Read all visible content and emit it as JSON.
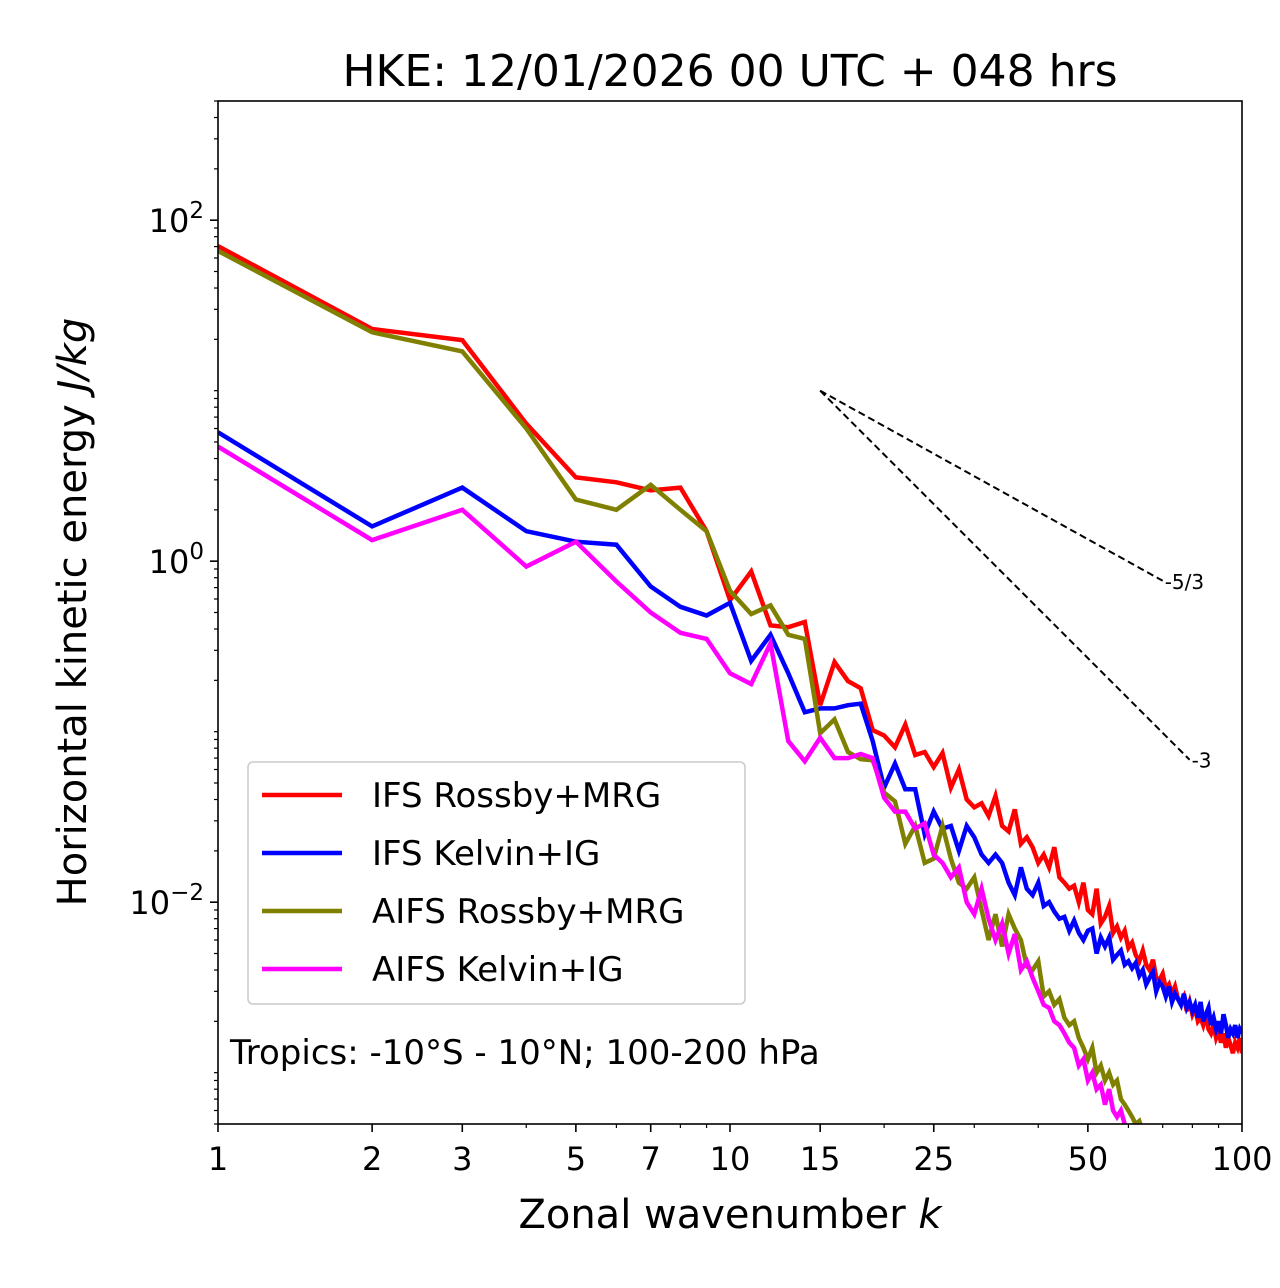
{
  "chart_data": {
    "type": "line",
    "title": "HKE: 12/01/2026 00 UTC + 048 hrs",
    "xlabel": "Zonal wavenumber",
    "xlabel_var": "k",
    "ylabel": "Horizontal kinetic energy",
    "ylabel_units": "J/kg",
    "xscale": "log",
    "yscale": "log",
    "xlim": [
      1,
      100
    ],
    "ylim": [
      0.0005,
      500
    ],
    "x_ticks": [
      1,
      2,
      3,
      5,
      7,
      10,
      15,
      25,
      50,
      100
    ],
    "x_tick_labels": [
      "1",
      "2",
      "3",
      "5",
      "7",
      "10",
      "15",
      "25",
      "50",
      "100"
    ],
    "y_ticks": [
      100,
      1,
      0.01
    ],
    "y_tick_labels": [
      {
        "base": "10",
        "exp": "2"
      },
      {
        "base": "10",
        "exp": "0"
      },
      {
        "base": "10",
        "exp": "−2"
      }
    ],
    "legend_position": "lower-left",
    "annotation": "Tropics: -10°S - 10°N; 100-200 hPa",
    "reference_lines": [
      {
        "label": "-5/3",
        "slope": -1.6667,
        "k_start": 15,
        "k_end": 70,
        "value_start": 10
      },
      {
        "label": "-3",
        "slope": -3,
        "k_start": 15,
        "k_end": 79,
        "value_start": 10
      }
    ],
    "series": [
      {
        "name": "IFS Rossby+MRG",
        "color": "#ff0000",
        "k_start": 1,
        "values": [
          70.5,
          23,
          19.8,
          6.4,
          3.1,
          2.9,
          2.6,
          2.7,
          1.5,
          0.59,
          0.87,
          0.42,
          0.41,
          0.44,
          0.143,
          0.256,
          0.198,
          0.18,
          0.102,
          0.095,
          0.081,
          0.11,
          0.073,
          0.076,
          0.062,
          0.075,
          0.047,
          0.06,
          0.04,
          0.036,
          0.038,
          0.032,
          0.042,
          0.028,
          0.026,
          0.035,
          0.022,
          0.024,
          0.021,
          0.017,
          0.019,
          0.016,
          0.021,
          0.014,
          0.013,
          0.012,
          0.0125,
          0.01,
          0.013,
          0.009,
          0.0085,
          0.012,
          0.0075,
          0.0082,
          0.0095,
          0.0066,
          0.0072,
          0.0062,
          0.0068,
          0.0054,
          0.0058,
          0.0049,
          0.0045,
          0.0052,
          0.0043,
          0.004,
          0.0046,
          0.0036,
          0.0035,
          0.0038,
          0.0031,
          0.0033,
          0.0029,
          0.0032,
          0.0027,
          0.0026,
          0.0028,
          0.0023,
          0.0026,
          0.0022,
          0.0024,
          0.002,
          0.0021,
          0.0019,
          0.0022,
          0.0018,
          0.0017,
          0.0019,
          0.0016,
          0.00175,
          0.0015,
          0.0017,
          0.0014,
          0.0016,
          0.00145,
          0.0013,
          0.0015,
          0.0014,
          0.0016,
          0.0013
        ]
      },
      {
        "name": "IFS Kelvin+IG",
        "color": "#0000ff",
        "k_start": 1,
        "values": [
          5.7,
          1.6,
          2.7,
          1.5,
          1.3,
          1.25,
          0.71,
          0.54,
          0.48,
          0.57,
          0.26,
          0.37,
          0.22,
          0.13,
          0.137,
          0.137,
          0.143,
          0.146,
          0.088,
          0.047,
          0.065,
          0.046,
          0.046,
          0.025,
          0.034,
          0.027,
          0.028,
          0.02,
          0.028,
          0.024,
          0.019,
          0.017,
          0.019,
          0.017,
          0.013,
          0.011,
          0.016,
          0.012,
          0.011,
          0.013,
          0.0095,
          0.01,
          0.0088,
          0.008,
          0.0082,
          0.0068,
          0.0078,
          0.0066,
          0.006,
          0.0068,
          0.007,
          0.005,
          0.0062,
          0.0055,
          0.0062,
          0.0046,
          0.0049,
          0.0052,
          0.0043,
          0.0045,
          0.0041,
          0.0044,
          0.0037,
          0.004,
          0.0033,
          0.0036,
          0.0039,
          0.003,
          0.0034,
          0.0032,
          0.0028,
          0.0032,
          0.0026,
          0.0029,
          0.0027,
          0.0025,
          0.0029,
          0.0024,
          0.0026,
          0.0023,
          0.0025,
          0.0021,
          0.0026,
          0.002,
          0.0022,
          0.0024,
          0.0019,
          0.0021,
          0.0018,
          0.002,
          0.0017,
          0.0022,
          0.0019,
          0.0016,
          0.0018,
          0.0017,
          0.0019,
          0.0016,
          0.0018,
          0.0017
        ]
      },
      {
        "name": "AIFS Rossby+MRG",
        "color": "#808000",
        "k_start": 1,
        "values": [
          66,
          22,
          17,
          6,
          2.3,
          2.0,
          2.8,
          2.0,
          1.5,
          0.67,
          0.49,
          0.55,
          0.37,
          0.35,
          0.098,
          0.118,
          0.076,
          0.069,
          0.068,
          0.044,
          0.039,
          0.022,
          0.028,
          0.017,
          0.018,
          0.028,
          0.018,
          0.013,
          0.012,
          0.014,
          0.009,
          0.006,
          0.0085,
          0.0055,
          0.0085,
          0.007,
          0.006,
          0.0042,
          0.004,
          0.0045,
          0.0028,
          0.003,
          0.0025,
          0.0027,
          0.0021,
          0.0019,
          0.002,
          0.0016,
          0.0014,
          0.0012,
          0.0014,
          0.001,
          0.0011,
          0.0009,
          0.001,
          0.00085,
          0.0009,
          0.0007,
          0.00065,
          0.0006,
          0.00055,
          0.0005,
          0.00052,
          0.00045,
          0.0005
        ]
      },
      {
        "name": "AIFS Kelvin+IG",
        "color": "#ff00ff",
        "k_start": 1,
        "values": [
          4.7,
          1.33,
          2.0,
          0.93,
          1.3,
          0.76,
          0.5,
          0.38,
          0.35,
          0.22,
          0.19,
          0.33,
          0.088,
          0.067,
          0.092,
          0.07,
          0.07,
          0.074,
          0.07,
          0.041,
          0.034,
          0.034,
          0.027,
          0.029,
          0.019,
          0.017,
          0.014,
          0.016,
          0.01,
          0.0085,
          0.012,
          0.008,
          0.006,
          0.0075,
          0.005,
          0.0065,
          0.004,
          0.0045,
          0.0036,
          0.003,
          0.0025,
          0.0024,
          0.002,
          0.0019,
          0.0017,
          0.0015,
          0.0014,
          0.0011,
          0.0012,
          0.0009,
          0.001,
          0.0008,
          0.00085,
          0.00065,
          0.0008,
          0.0006,
          0.00055,
          0.0006,
          0.0005,
          0.00045,
          0.0004
        ]
      }
    ]
  }
}
